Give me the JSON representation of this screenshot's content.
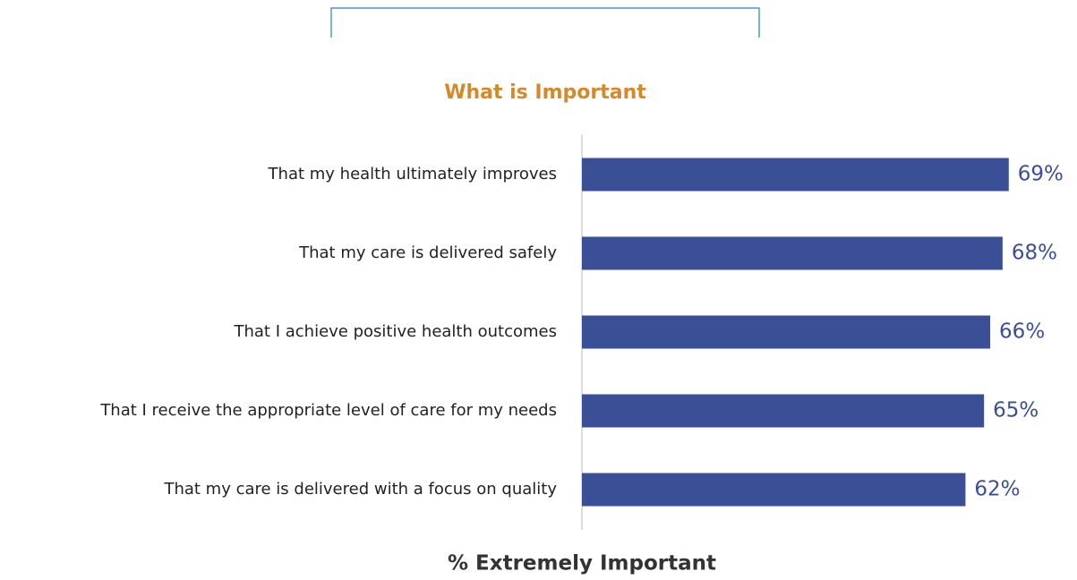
{
  "chart_data": {
    "type": "bar",
    "orientation": "horizontal",
    "title": "What is Important",
    "categories": [
      "That my health ultimately improves",
      "That my care is delivered safely",
      "That I achieve positive health outcomes",
      "That I receive the appropriate level of care for my needs",
      "That my care is delivered with a focus on quality"
    ],
    "values": [
      69,
      68,
      66,
      65,
      62
    ],
    "value_labels": [
      "69%",
      "68%",
      "66%",
      "65%",
      "62%"
    ],
    "color": "#3b4f96",
    "xlabel": "% Extremely Important",
    "xlim": [
      0,
      100
    ]
  }
}
